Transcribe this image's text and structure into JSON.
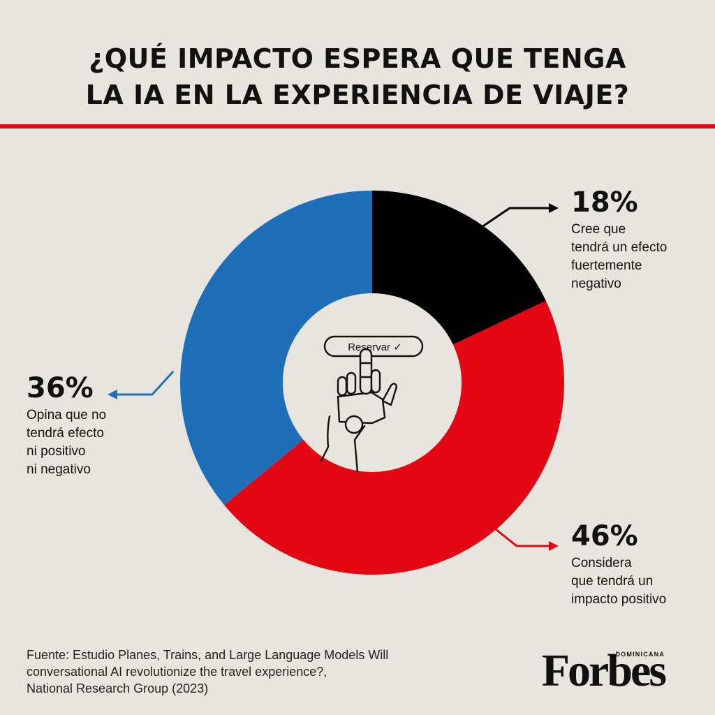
{
  "title": {
    "line1": "¿QUÉ IMPACTO ESPERA QUE TENGA",
    "line2": "LA IA EN LA EXPERIENCIA DE VIAJE?"
  },
  "colors": {
    "background": "#e8e5df",
    "accent_rule": "#e30613",
    "negative": "#000000",
    "positive": "#e30613",
    "neutral": "#1f6fb8"
  },
  "chart_data": {
    "type": "pie",
    "style": "donut",
    "slices": [
      {
        "value": 18,
        "label": "18%",
        "description": [
          "Cree que",
          "tendrá un efecto",
          "fuertemente",
          "negativo"
        ],
        "color": "#000000"
      },
      {
        "value": 46,
        "label": "46%",
        "description": [
          "Considera",
          "que tendrá un",
          "impacto positivo"
        ],
        "color": "#e30613"
      },
      {
        "value": 36,
        "label": "36%",
        "description": [
          "Opina que no",
          "tendrá efecto",
          "ni positivo",
          "ni negativo"
        ],
        "color": "#1f6fb8"
      }
    ]
  },
  "illustration": {
    "button_label": "Reservar ✓",
    "icon": "robot-hand-icon"
  },
  "source": {
    "line1": "Fuente: Estudio Planes, Trains, and Large Language Models Will",
    "line2": "conversational AI revolutionize the travel experience?,",
    "line3": "National Research Group (2023)"
  },
  "brand": {
    "wordmark": "Forbes",
    "edition": "DOMINICANA"
  }
}
